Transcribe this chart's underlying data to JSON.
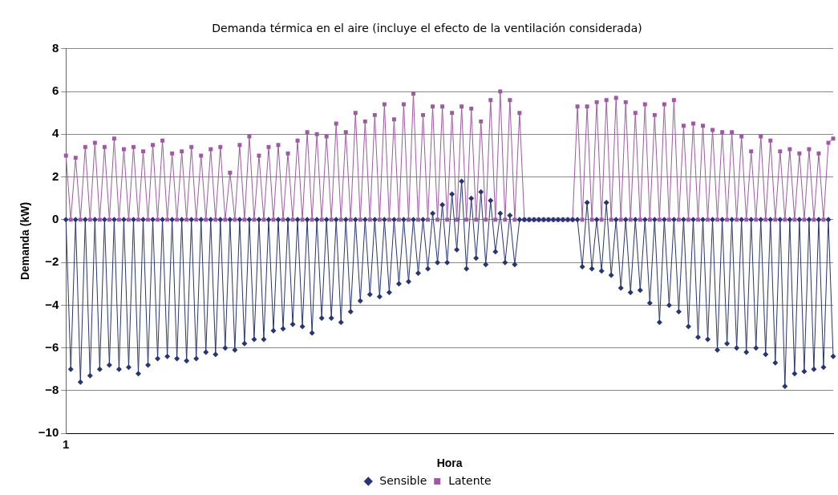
{
  "chart_data": {
    "type": "line",
    "title": "Demanda térmica en el aire (incluye el efecto de la ventilación considerada)",
    "xlabel": "Hora",
    "ylabel": "Demanda (kW)",
    "categories": [
      "1",
      null,
      null,
      null,
      null,
      null,
      null,
      null,
      null,
      null,
      null,
      null,
      null,
      null,
      null,
      null,
      null,
      null,
      null,
      null,
      null,
      null,
      null,
      null,
      null,
      null,
      null,
      null,
      null,
      null,
      null,
      null,
      null,
      null,
      null,
      null,
      null,
      null,
      null,
      null,
      null,
      null,
      null,
      null,
      null,
      null,
      null,
      null,
      null,
      null,
      null,
      null,
      null,
      null,
      null,
      null,
      null,
      null,
      null,
      null,
      null,
      null,
      null,
      null,
      null,
      null,
      null,
      null,
      null,
      null,
      null,
      null,
      null,
      null,
      null,
      null,
      null,
      null,
      null,
      null,
      null,
      null,
      null,
      null,
      null,
      null,
      null,
      null,
      null,
      null,
      null,
      null,
      null,
      null,
      null,
      null,
      null,
      null,
      null,
      null,
      null,
      null,
      null,
      null,
      null,
      null,
      null,
      null,
      null,
      null,
      null,
      null,
      null,
      null,
      null,
      null,
      null,
      null,
      null,
      null,
      null,
      null,
      null,
      null,
      null,
      null,
      null,
      null,
      null,
      null,
      null,
      null,
      null,
      null,
      null,
      null,
      null,
      null,
      null,
      null,
      null,
      null,
      null,
      null,
      null,
      null,
      null,
      null,
      null,
      null,
      null,
      null,
      null,
      null,
      null,
      null,
      null,
      null,
      null,
      null
    ],
    "ylim": [
      -10,
      8
    ],
    "yticks": [
      -10,
      -8,
      -6,
      -4,
      -2,
      0,
      2,
      4,
      6,
      8
    ],
    "grid": "y",
    "legend": "bottom",
    "line_style": "solid",
    "series": [
      {
        "name": "Sensible",
        "color": "#283571",
        "marker": "diamond",
        "values": [
          0,
          -7.0,
          0,
          -7.6,
          0,
          -7.3,
          0,
          -7.0,
          0,
          -6.8,
          0,
          -7.0,
          0,
          -6.9,
          0,
          -7.2,
          0,
          -6.8,
          0,
          -6.5,
          0,
          -6.4,
          0,
          -6.5,
          0,
          -6.6,
          0,
          -6.5,
          0,
          -6.2,
          0,
          -6.3,
          0,
          -6.0,
          0,
          -6.1,
          0,
          -5.8,
          0,
          -5.6,
          0,
          -5.6,
          0,
          -5.2,
          0,
          -5.1,
          0,
          -4.9,
          0,
          -5.0,
          0,
          -5.3,
          0,
          -4.6,
          0,
          -4.6,
          0,
          -4.8,
          0,
          -4.3,
          0,
          -3.8,
          0,
          -3.5,
          0,
          -3.6,
          0,
          -3.4,
          0,
          -3.0,
          0,
          -2.9,
          0,
          -2.5,
          0,
          -2.3,
          0.3,
          -2.0,
          0.7,
          -2.0,
          1.2,
          -1.4,
          1.8,
          -2.3,
          1.0,
          -1.8,
          1.3,
          -2.1,
          0.9,
          -1.5,
          0.3,
          -2.0,
          0.2,
          -2.1,
          0,
          0,
          0,
          0,
          0,
          0,
          0,
          0,
          0,
          0,
          0,
          0,
          0,
          -2.2,
          0.8,
          -2.3,
          0,
          -2.4,
          0.8,
          -2.6,
          0,
          -3.2,
          0,
          -3.4,
          0,
          -3.3,
          0,
          -3.9,
          0,
          -4.8,
          0,
          -4.0,
          0,
          -4.3,
          0,
          -5.0,
          0,
          -5.5,
          0,
          -5.6,
          0,
          -6.1,
          0,
          -5.8,
          0,
          -6.0,
          0,
          -6.2,
          0,
          -6.0,
          0,
          -6.3,
          0,
          -6.7,
          0,
          -7.8,
          0,
          -7.2,
          0,
          -7.1,
          0,
          -7.0,
          0,
          -6.9,
          0,
          -6.4
        ]
      },
      {
        "name": "Latente",
        "color": "#9c5aa2",
        "marker": "square",
        "values": [
          3.0,
          0,
          2.9,
          0,
          3.4,
          0,
          3.6,
          0,
          3.4,
          0,
          3.8,
          0,
          3.3,
          0,
          3.4,
          0,
          3.2,
          0,
          3.5,
          0,
          3.7,
          0,
          3.1,
          0,
          3.2,
          0,
          3.4,
          0,
          3.0,
          0,
          3.3,
          0,
          3.4,
          0,
          2.2,
          0,
          3.5,
          0,
          3.9,
          0,
          3.0,
          0,
          3.4,
          0,
          3.5,
          0,
          3.1,
          0,
          3.7,
          0,
          4.1,
          0,
          4.0,
          0,
          3.9,
          0,
          4.5,
          0,
          4.1,
          0,
          5.0,
          0,
          4.6,
          0,
          4.9,
          0,
          5.4,
          0,
          4.7,
          0,
          5.4,
          0,
          5.9,
          0,
          4.9,
          0,
          5.3,
          0,
          5.3,
          0,
          5.0,
          0,
          5.3,
          0,
          5.2,
          0,
          4.6,
          0,
          5.6,
          0,
          6.0,
          0,
          5.6,
          0,
          5.0,
          0,
          0,
          0,
          0,
          0,
          0,
          0,
          0,
          0,
          0,
          0,
          5.3,
          0,
          5.3,
          0,
          5.5,
          0,
          5.6,
          0,
          5.7,
          0,
          5.5,
          0,
          5.0,
          0,
          5.4,
          0,
          4.9,
          0,
          5.4,
          0,
          5.6,
          0,
          4.4,
          0,
          4.5,
          0,
          4.4,
          0,
          4.2,
          0,
          4.1,
          0,
          4.1,
          0,
          3.9,
          0,
          3.2,
          0,
          3.9,
          0,
          3.7,
          0,
          3.2,
          0,
          3.3,
          0,
          3.1,
          0,
          3.3,
          0,
          3.1,
          0,
          3.6,
          3.8
        ]
      }
    ]
  }
}
